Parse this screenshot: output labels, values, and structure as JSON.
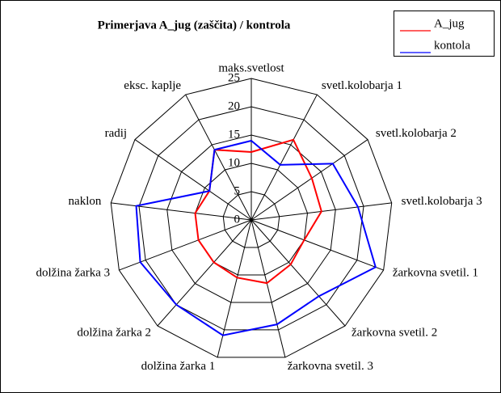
{
  "chart_data": {
    "type": "radar",
    "title": "Primerjava A_jug (zaščita) / kontrola",
    "categories": [
      "maks.svetlost",
      "svetl.kolobarja 1",
      "svetl.kolobarja 2",
      "svetl.kolobarja 3",
      "žarkovna svetil. 1",
      "žarkovna svetil. 2",
      "žarkovna svetil. 3",
      "dolžina žarka 1",
      "dolžina žarka 2",
      "dolžina žarka 3",
      "naklon",
      "radij",
      "eksc. kaplje"
    ],
    "series": [
      {
        "name": "A_jug",
        "color": "#ff0000",
        "values": [
          12,
          16,
          13,
          12.5,
          10,
          10.5,
          11.5,
          10.5,
          10,
          10,
          10,
          9,
          14
        ]
      },
      {
        "name": "kontola",
        "color": "#0000ff",
        "values": [
          14,
          11,
          17.5,
          19,
          23.5,
          18,
          19,
          21,
          20,
          21,
          20.5,
          9,
          14
        ]
      }
    ],
    "ylim": [
      0,
      25
    ],
    "yticks": [
      0,
      5,
      10,
      15,
      20,
      25
    ],
    "grid": true
  }
}
